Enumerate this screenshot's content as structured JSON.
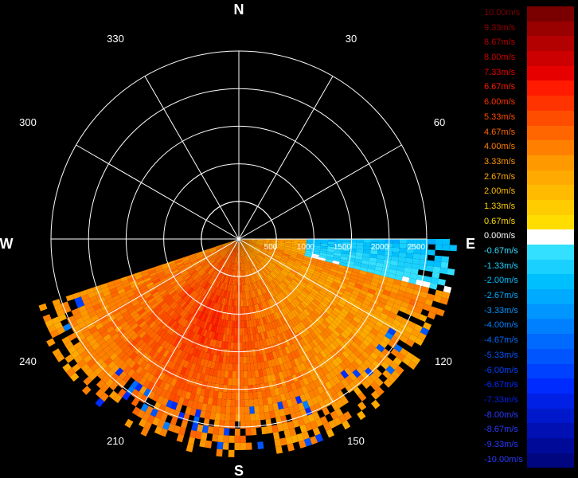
{
  "chart_data": {
    "type": "heatmap",
    "subtype": "polar radar wind-speed scan (PPI)",
    "cardinal_labels": {
      "N": "N",
      "E": "E",
      "S": "S",
      "W": "W"
    },
    "angle_labels": [
      "30",
      "60",
      "120",
      "150",
      "210",
      "240",
      "300",
      "330"
    ],
    "range_rings": [
      500,
      1000,
      1500,
      2000,
      2500
    ],
    "range_labels": [
      "500",
      "1000",
      "1500",
      "2000",
      "2500"
    ],
    "data_sector_deg": [
      90,
      250
    ],
    "max_range": 2500,
    "grid": true,
    "colorbar": {
      "position": "right",
      "entries": [
        {
          "label": "10.00m/s",
          "value": 10.0,
          "color": "#7a0000"
        },
        {
          "label": "9.33m/s",
          "value": 9.33,
          "color": "#990000"
        },
        {
          "label": "8.67m/s",
          "value": 8.67,
          "color": "#b30000"
        },
        {
          "label": "8.00m/s",
          "value": 8.0,
          "color": "#cc0000"
        },
        {
          "label": "7.33m/s",
          "value": 7.33,
          "color": "#e60000"
        },
        {
          "label": "6.67m/s",
          "value": 6.67,
          "color": "#ff1a00"
        },
        {
          "label": "6.00m/s",
          "value": 6.0,
          "color": "#ff3300"
        },
        {
          "label": "5.33m/s",
          "value": 5.33,
          "color": "#ff4d00"
        },
        {
          "label": "4.67m/s",
          "value": 4.67,
          "color": "#ff6600"
        },
        {
          "label": "4.00m/s",
          "value": 4.0,
          "color": "#ff8000"
        },
        {
          "label": "3.33m/s",
          "value": 3.33,
          "color": "#ff9900"
        },
        {
          "label": "2.67m/s",
          "value": 2.67,
          "color": "#ffaa00"
        },
        {
          "label": "2.00m/s",
          "value": 2.0,
          "color": "#ffbb00"
        },
        {
          "label": "1.33m/s",
          "value": 1.33,
          "color": "#ffcc00"
        },
        {
          "label": "0.67m/s",
          "value": 0.67,
          "color": "#ffdd00"
        },
        {
          "label": "0.00m/s",
          "value": 0.0,
          "color": "#ffffff"
        },
        {
          "label": "-0.67m/s",
          "value": -0.67,
          "color": "#33e0ff"
        },
        {
          "label": "-1.33m/s",
          "value": -1.33,
          "color": "#1ad0ff"
        },
        {
          "label": "-2.00m/s",
          "value": -2.0,
          "color": "#00bfff"
        },
        {
          "label": "-2.67m/s",
          "value": -2.67,
          "color": "#00aaff"
        },
        {
          "label": "-3.33m/s",
          "value": -3.33,
          "color": "#0095ff"
        },
        {
          "label": "-4.00m/s",
          "value": -4.0,
          "color": "#0080ff"
        },
        {
          "label": "-4.67m/s",
          "value": -4.67,
          "color": "#006aff"
        },
        {
          "label": "-5.33m/s",
          "value": -5.33,
          "color": "#0055ff"
        },
        {
          "label": "-6.00m/s",
          "value": -6.0,
          "color": "#0040ff"
        },
        {
          "label": "-6.67m/s",
          "value": -6.67,
          "color": "#002bff"
        },
        {
          "label": "-7.33m/s",
          "value": -7.33,
          "color": "#0020e6"
        },
        {
          "label": "-8.00m/s",
          "value": -8.0,
          "color": "#0018cc"
        },
        {
          "label": "-8.67m/s",
          "value": -8.67,
          "color": "#0010b3"
        },
        {
          "label": "-9.33m/s",
          "value": -9.33,
          "color": "#000a99"
        },
        {
          "label": "-10.00m/s",
          "value": -10.0,
          "color": "#000680"
        }
      ]
    }
  }
}
